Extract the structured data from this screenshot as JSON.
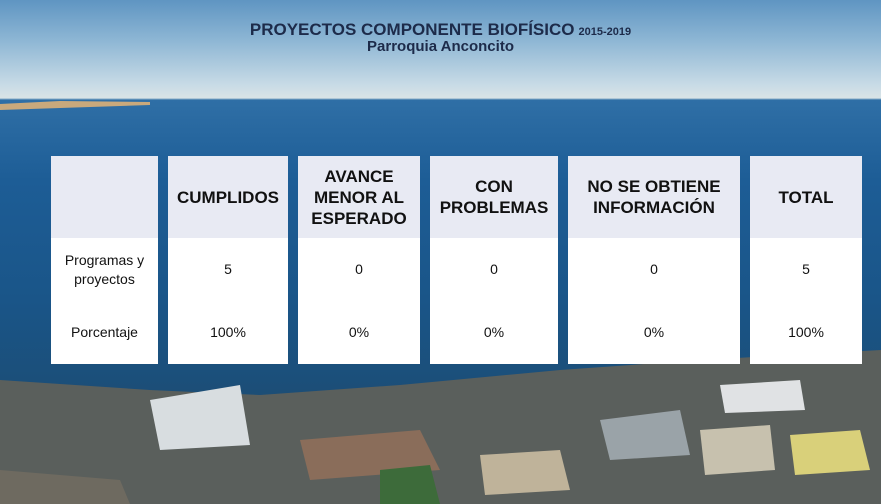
{
  "header": {
    "title": "PROYECTOS COMPONENTE BIOFÍSICO",
    "years": "2015-2019",
    "subtitle": "Parroquia Anconcito"
  },
  "table": {
    "columns": [
      "CUMPLIDOS",
      "AVANCE MENOR AL ESPERADO",
      "CON PROBLEMAS",
      "NO SE OBTIENE INFORMACIÓN",
      "TOTAL"
    ],
    "rows": [
      {
        "label": "Programas y proyectos",
        "cells": [
          "5",
          "0",
          "0",
          "0",
          "5"
        ]
      },
      {
        "label": "Porcentaje",
        "cells": [
          "100%",
          "0%",
          "0%",
          "0%",
          "100%"
        ]
      }
    ]
  }
}
